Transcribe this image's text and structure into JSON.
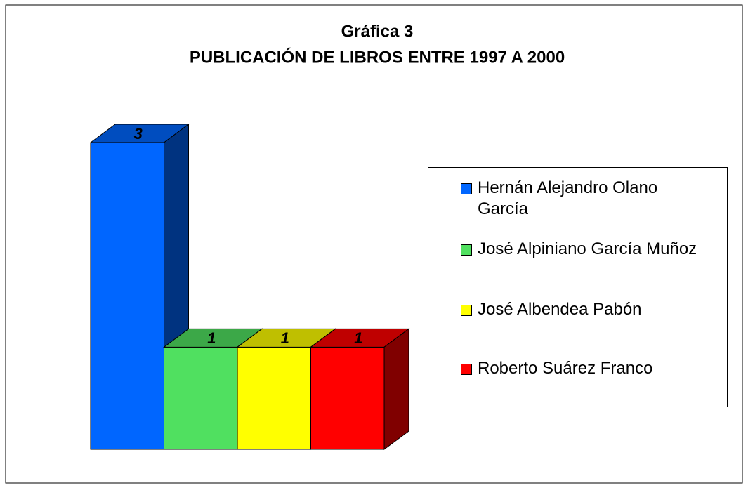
{
  "chart_data": {
    "type": "bar3d",
    "title": [
      "Gráfica 3",
      "PUBLICACIÓN DE LIBROS ENTRE 1997 A 2000"
    ],
    "categories": [
      null
    ],
    "series": [
      {
        "name": "Hernán Alejandro Olano García",
        "color": "#0066ff",
        "values": [
          3
        ]
      },
      {
        "name": "José Alpiniano García Muñoz",
        "color": "#50e060",
        "values": [
          1
        ]
      },
      {
        "name": "José Albendea Pabón",
        "color": "#ffff00",
        "values": [
          1
        ]
      },
      {
        "name": "Roberto Suárez Franco",
        "color": "#ff0000",
        "values": [
          1
        ]
      }
    ],
    "data_labels": true,
    "legend": "right"
  }
}
